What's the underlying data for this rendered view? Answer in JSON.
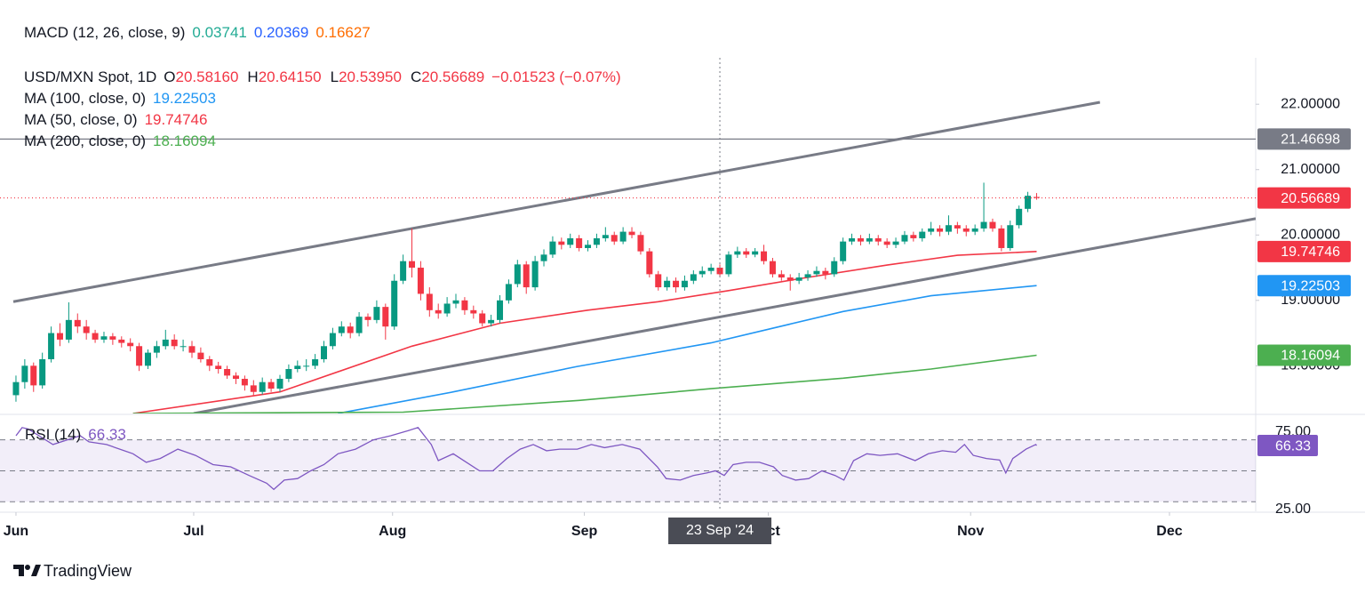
{
  "chart_data": {
    "type": "candlestick",
    "header": {
      "label": "MACD (12, 26, close, 9)",
      "values": [
        {
          "text": "0.03741",
          "color": "#22ab94"
        },
        {
          "text": "0.20369",
          "color": "#2962ff"
        },
        {
          "text": "0.16627",
          "color": "#ff6d00"
        }
      ]
    },
    "symbol": "USD/MXN Spot, 1D",
    "ohlc_legend": [
      {
        "label": "O",
        "value": "20.58160"
      },
      {
        "label": "H",
        "value": "20.64150"
      },
      {
        "label": "L",
        "value": "20.53950"
      },
      {
        "label": "C",
        "value": "20.56689"
      }
    ],
    "change": "−0.01523 (−0.07%)",
    "legend_color": "#f23645",
    "up_color": "#089981",
    "down_color": "#f23645",
    "candles": [
      [
        17.55,
        17.85,
        17.45,
        17.75
      ],
      [
        17.75,
        18.1,
        17.65,
        18.0
      ],
      [
        18.0,
        18.05,
        17.6,
        17.7
      ],
      [
        17.7,
        18.2,
        17.65,
        18.1
      ],
      [
        18.1,
        18.6,
        18.05,
        18.5
      ],
      [
        18.5,
        18.65,
        18.3,
        18.4
      ],
      [
        18.4,
        18.97,
        18.35,
        18.7
      ],
      [
        18.7,
        18.8,
        18.5,
        18.6
      ],
      [
        18.6,
        18.7,
        18.4,
        18.5
      ],
      [
        18.5,
        18.55,
        18.35,
        18.4
      ],
      [
        18.4,
        18.52,
        18.35,
        18.45
      ],
      [
        18.45,
        18.5,
        18.32,
        18.4
      ],
      [
        18.4,
        18.45,
        18.28,
        18.35
      ],
      [
        18.35,
        18.42,
        18.22,
        18.3
      ],
      [
        18.3,
        18.35,
        17.92,
        18.0
      ],
      [
        18.0,
        18.25,
        17.95,
        18.2
      ],
      [
        18.2,
        18.38,
        18.12,
        18.3
      ],
      [
        18.3,
        18.55,
        18.25,
        18.4
      ],
      [
        18.4,
        18.48,
        18.25,
        18.3
      ],
      [
        18.3,
        18.4,
        18.22,
        18.3
      ],
      [
        18.3,
        18.38,
        18.12,
        18.2
      ],
      [
        18.2,
        18.28,
        18.05,
        18.1
      ],
      [
        18.1,
        18.15,
        17.92,
        18.0
      ],
      [
        18.0,
        18.06,
        17.88,
        17.95
      ],
      [
        17.95,
        18.0,
        17.8,
        17.85
      ],
      [
        17.85,
        17.9,
        17.72,
        17.8
      ],
      [
        17.8,
        17.85,
        17.62,
        17.7
      ],
      [
        17.7,
        17.78,
        17.55,
        17.6
      ],
      [
        17.6,
        17.82,
        17.56,
        17.75
      ],
      [
        17.75,
        17.8,
        17.6,
        17.65
      ],
      [
        17.65,
        17.86,
        17.6,
        17.8
      ],
      [
        17.8,
        18.02,
        17.75,
        17.95
      ],
      [
        17.95,
        18.08,
        17.9,
        18.0
      ],
      [
        18.0,
        18.1,
        17.92,
        18.0
      ],
      [
        18.0,
        18.18,
        17.95,
        18.1
      ],
      [
        18.1,
        18.38,
        18.05,
        18.3
      ],
      [
        18.3,
        18.58,
        18.25,
        18.5
      ],
      [
        18.5,
        18.68,
        18.45,
        18.6
      ],
      [
        18.6,
        18.66,
        18.42,
        18.5
      ],
      [
        18.5,
        18.82,
        18.45,
        18.75
      ],
      [
        18.75,
        18.8,
        18.6,
        18.7
      ],
      [
        18.7,
        19.0,
        18.65,
        18.9
      ],
      [
        18.9,
        18.95,
        18.4,
        18.6
      ],
      [
        18.6,
        19.4,
        18.55,
        19.3
      ],
      [
        19.3,
        19.7,
        19.25,
        19.6
      ],
      [
        19.6,
        20.1,
        19.35,
        19.5
      ],
      [
        19.5,
        19.6,
        19.0,
        19.1
      ],
      [
        19.1,
        19.2,
        18.75,
        18.85
      ],
      [
        18.85,
        18.95,
        18.72,
        18.8
      ],
      [
        18.8,
        19.05,
        18.75,
        18.95
      ],
      [
        18.95,
        19.1,
        18.88,
        19.0
      ],
      [
        19.0,
        19.05,
        18.78,
        18.85
      ],
      [
        18.85,
        18.92,
        18.72,
        18.8
      ],
      [
        18.8,
        18.85,
        18.6,
        18.65
      ],
      [
        18.65,
        18.78,
        18.6,
        18.7
      ],
      [
        18.7,
        19.08,
        18.65,
        19.0
      ],
      [
        19.0,
        19.32,
        18.95,
        19.25
      ],
      [
        19.25,
        19.62,
        19.2,
        19.55
      ],
      [
        19.55,
        19.6,
        19.1,
        19.2
      ],
      [
        19.2,
        19.68,
        19.15,
        19.6
      ],
      [
        19.6,
        19.78,
        19.52,
        19.7
      ],
      [
        19.7,
        19.98,
        19.65,
        19.9
      ],
      [
        19.9,
        19.96,
        19.78,
        19.85
      ],
      [
        19.85,
        20.02,
        19.8,
        19.95
      ],
      [
        19.95,
        20.0,
        19.75,
        19.8
      ],
      [
        19.8,
        19.92,
        19.75,
        19.85
      ],
      [
        19.85,
        20.02,
        19.8,
        19.95
      ],
      [
        19.95,
        20.12,
        19.9,
        20.0
      ],
      [
        20.0,
        20.05,
        19.85,
        19.9
      ],
      [
        19.9,
        20.12,
        19.86,
        20.05
      ],
      [
        20.05,
        20.12,
        19.95,
        20.0
      ],
      [
        20.0,
        20.05,
        19.7,
        19.75
      ],
      [
        19.75,
        19.8,
        19.35,
        19.4
      ],
      [
        19.4,
        19.45,
        19.15,
        19.2
      ],
      [
        19.2,
        19.36,
        19.15,
        19.3
      ],
      [
        19.3,
        19.35,
        19.12,
        19.2
      ],
      [
        19.2,
        19.38,
        19.15,
        19.3
      ],
      [
        19.3,
        19.46,
        19.25,
        19.4
      ],
      [
        19.4,
        19.52,
        19.35,
        19.45
      ],
      [
        19.45,
        19.56,
        19.4,
        19.5
      ],
      [
        19.5,
        19.55,
        19.35,
        19.4
      ],
      [
        19.4,
        19.75,
        19.36,
        19.7
      ],
      [
        19.7,
        19.82,
        19.65,
        19.75
      ],
      [
        19.75,
        19.8,
        19.65,
        19.7
      ],
      [
        19.7,
        19.8,
        19.66,
        19.75
      ],
      [
        19.75,
        19.85,
        19.55,
        19.6
      ],
      [
        19.6,
        19.65,
        19.35,
        19.4
      ],
      [
        19.4,
        19.46,
        19.3,
        19.35
      ],
      [
        19.35,
        19.4,
        19.15,
        19.3
      ],
      [
        19.3,
        19.42,
        19.25,
        19.35
      ],
      [
        19.35,
        19.46,
        19.3,
        19.4
      ],
      [
        19.4,
        19.52,
        19.36,
        19.45
      ],
      [
        19.45,
        19.5,
        19.32,
        19.4
      ],
      [
        19.4,
        19.66,
        19.36,
        19.6
      ],
      [
        19.6,
        19.96,
        19.55,
        19.9
      ],
      [
        19.9,
        20.02,
        19.85,
        19.95
      ],
      [
        19.95,
        20.0,
        19.84,
        19.9
      ],
      [
        19.9,
        20.02,
        19.86,
        19.95
      ],
      [
        19.95,
        20.0,
        19.84,
        19.9
      ],
      [
        19.9,
        19.95,
        19.8,
        19.85
      ],
      [
        19.85,
        19.96,
        19.8,
        19.9
      ],
      [
        19.9,
        20.06,
        19.86,
        20.0
      ],
      [
        20.0,
        20.05,
        19.9,
        19.95
      ],
      [
        19.95,
        20.1,
        19.9,
        20.05
      ],
      [
        20.05,
        20.2,
        20.0,
        20.1
      ],
      [
        20.1,
        20.15,
        19.98,
        20.05
      ],
      [
        20.05,
        20.3,
        20.0,
        20.15
      ],
      [
        20.15,
        20.2,
        20.02,
        20.1
      ],
      [
        20.1,
        20.15,
        19.98,
        20.05
      ],
      [
        20.05,
        20.16,
        20.0,
        20.1
      ],
      [
        20.1,
        20.8,
        20.05,
        20.2
      ],
      [
        20.2,
        20.25,
        20.05,
        20.1
      ],
      [
        20.1,
        20.15,
        19.75,
        19.8
      ],
      [
        19.8,
        20.22,
        19.76,
        20.15
      ],
      [
        20.15,
        20.45,
        20.1,
        20.4
      ],
      [
        20.4,
        20.66,
        20.35,
        20.6
      ],
      [
        20.5816,
        20.6415,
        20.5395,
        20.56689
      ]
    ],
    "xlim": [
      -0.3,
      140.9
    ],
    "xticks": [
      {
        "value": 0,
        "label": "Jun"
      },
      {
        "value": 20.2,
        "label": "Jul"
      },
      {
        "value": 42.8,
        "label": "Aug"
      },
      {
        "value": 64.6,
        "label": "Sep"
      },
      {
        "value": 85.5,
        "label": "Oct"
      },
      {
        "value": 108.5,
        "label": "Nov"
      },
      {
        "value": 131.1,
        "label": "Dec"
      }
    ],
    "ylim": [
      17.27,
      22.71
    ],
    "yticks": [
      {
        "value": 22,
        "label": "22.00000"
      },
      {
        "value": 21,
        "label": "21.00000"
      },
      {
        "value": 20,
        "label": "20.00000"
      },
      {
        "value": 19,
        "label": "19.00000"
      },
      {
        "value": 18,
        "label": "18.00000"
      }
    ],
    "moving_averages": [
      {
        "name": "MA (100, close, 0)",
        "color": "#2196f3",
        "x": [
          36.6,
          49.7,
          63.8,
          79,
          94,
          104,
          116
        ],
        "values": [
          17.27,
          17.6,
          17.99,
          18.35,
          18.83,
          19.07,
          19.22503
        ]
      },
      {
        "name": "MA (50, close, 0)",
        "color": "#f23645",
        "x": [
          13.3,
          30,
          45,
          55,
          65,
          73,
          81,
          89,
          99,
          107,
          116
        ],
        "values": [
          17.27,
          17.6,
          18.3,
          18.65,
          18.85,
          18.98,
          19.15,
          19.33,
          19.54,
          19.69,
          19.74746
        ]
      },
      {
        "name": "MA (200, close, 0)",
        "color": "#4caf50",
        "x": [
          13.3,
          44,
          64,
          79,
          94,
          104,
          116
        ],
        "values": [
          17.27,
          17.29,
          17.47,
          17.65,
          17.81,
          17.95,
          18.16094
        ]
      }
    ],
    "trendlines": [
      {
        "x": [
          -0.3,
          123.2
        ],
        "values": [
          18.98,
          22.03
        ]
      },
      {
        "x": [
          20.2,
          140.9
        ],
        "values": [
          17.27,
          20.25
        ]
      }
    ],
    "trend_color": "#787b86",
    "hline": {
      "value": 21.46698,
      "color": "#787b86"
    },
    "crosshair": {
      "x": 80,
      "label": "23 Sep '24"
    },
    "rsi": {
      "name": "RSI (14)",
      "color": "#7e57c2",
      "ylim": [
        23.85,
        85.9
      ],
      "yticks": [
        {
          "value": 75,
          "label": "75.00"
        },
        {
          "value": 25,
          "label": "25.00"
        }
      ],
      "levels": [
        70,
        50,
        30
      ],
      "x": [
        0,
        0.7,
        1.4,
        4.2,
        7.3,
        8.3,
        10.3,
        13.3,
        14.8,
        16.4,
        18.4,
        20.4,
        22.4,
        24.4,
        26.5,
        28.5,
        29.3,
        30.5,
        32,
        33.5,
        35,
        36.6,
        38.6,
        40.6,
        42.6,
        44.6,
        45.7,
        47.2,
        48,
        49.7,
        51.2,
        52.7,
        54.2,
        55.8,
        57.3,
        58.8,
        60.3,
        61.8,
        63.8,
        65.4,
        66.9,
        68.9,
        70.9,
        72.9,
        73.9,
        75.5,
        77,
        78.5,
        79.5,
        80.5,
        81.5,
        83,
        84.5,
        86.1,
        87.1,
        88.6,
        90.1,
        91.6,
        93.1,
        94.1,
        95.2,
        96.7,
        98.2,
        100.2,
        102.2,
        103.7,
        105.3,
        106.8,
        107.8,
        108.8,
        110.3,
        111.8,
        112.5,
        113.3,
        114.8,
        115.9,
        116
      ],
      "values": [
        72.7,
        78,
        77,
        67,
        72.7,
        68.7,
        67,
        61,
        55.5,
        58,
        64,
        60,
        54,
        52.6,
        47,
        42,
        38,
        44,
        45,
        50,
        54,
        61,
        64,
        70,
        72.7,
        76,
        78,
        67,
        56.6,
        61,
        55.5,
        50,
        50,
        58,
        64,
        67,
        63,
        64,
        64,
        67,
        65,
        67,
        64,
        52.6,
        45,
        44,
        47,
        48.6,
        50,
        47,
        54,
        55.5,
        55.5,
        52.6,
        47,
        44,
        45,
        50,
        47,
        44,
        56.6,
        61,
        60,
        61,
        56.6,
        61,
        63,
        62,
        67,
        60,
        58,
        57,
        48.6,
        58,
        64,
        67,
        66.33
      ]
    },
    "brand": "TradingView"
  }
}
